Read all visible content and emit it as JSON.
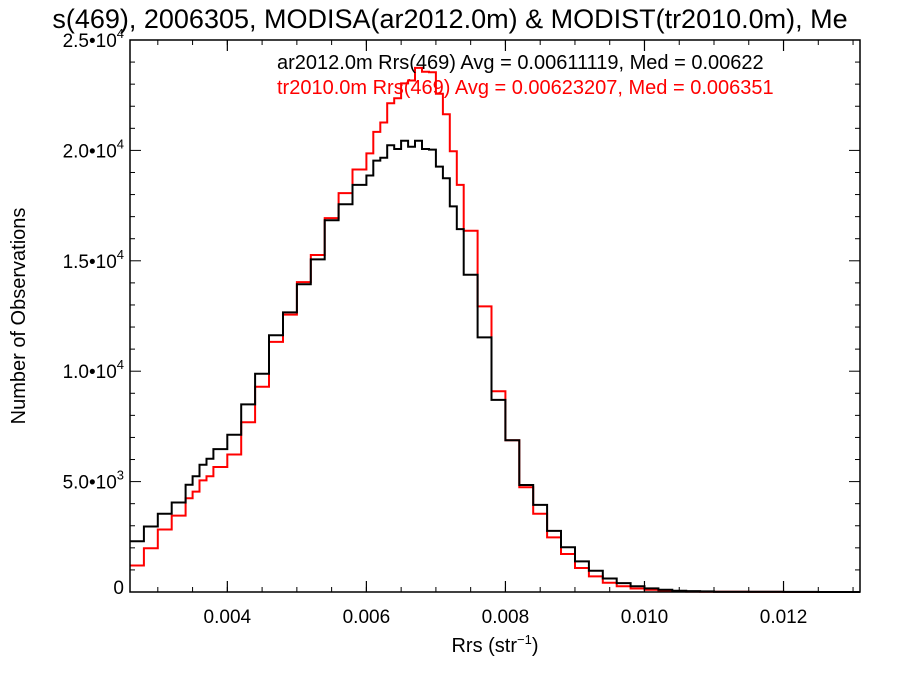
{
  "chart_data": {
    "type": "line",
    "title": "s(469), 2006305, MODISA(ar2012.0m) & MODIST(tr2010.0m), Me",
    "xlabel": "Rrs (str",
    "xlabel_sup": "−1",
    "xlabel_close": ")",
    "ylabel": "Number of Observations",
    "xlim": [
      0.0026,
      0.0131
    ],
    "ylim": [
      0,
      25000
    ],
    "x_ticks": [
      {
        "value": 0.004,
        "label": "0.004"
      },
      {
        "value": 0.006,
        "label": "0.006"
      },
      {
        "value": 0.008,
        "label": "0.008"
      },
      {
        "value": 0.01,
        "label": "0.010"
      },
      {
        "value": 0.012,
        "label": "0.012"
      }
    ],
    "y_ticks": [
      {
        "value": 0,
        "mant": "0",
        "exp": ""
      },
      {
        "value": 5000,
        "mant": "5.0•10",
        "exp": "3"
      },
      {
        "value": 10000,
        "mant": "1.0•10",
        "exp": "4"
      },
      {
        "value": 15000,
        "mant": "1.5•10",
        "exp": "4"
      },
      {
        "value": 20000,
        "mant": "2.0•10",
        "exp": "4"
      },
      {
        "value": 25000,
        "mant": "2.5•10",
        "exp": "4"
      }
    ],
    "grid": false,
    "legend_position": "top-right",
    "series": [
      {
        "name": "ar2012.0m Rrs(469) Avg = 0.00611119, Med = 0.00622",
        "color": "#000000",
        "step": true,
        "x": [
          0.0026,
          0.0028,
          0.003,
          0.0032,
          0.0034,
          0.0035,
          0.0036,
          0.0037,
          0.0038,
          0.004,
          0.0042,
          0.0044,
          0.0046,
          0.0048,
          0.005,
          0.0052,
          0.0054,
          0.0056,
          0.0058,
          0.006,
          0.0061,
          0.0062,
          0.0063,
          0.0064,
          0.0065,
          0.0066,
          0.0067,
          0.0068,
          0.0069,
          0.007,
          0.0071,
          0.0072,
          0.0073,
          0.0074,
          0.0076,
          0.0078,
          0.008,
          0.0082,
          0.0084,
          0.0086,
          0.0088,
          0.009,
          0.0092,
          0.0094,
          0.0096,
          0.0098,
          0.01,
          0.0102,
          0.0104,
          0.0106,
          0.0108,
          0.011,
          0.0115,
          0.012,
          0.0125,
          0.0131
        ],
        "y": [
          2300,
          3000,
          3500,
          4100,
          4800,
          5300,
          5700,
          6100,
          6400,
          7200,
          8400,
          10000,
          11500,
          12800,
          13800,
          15200,
          16700,
          17700,
          18300,
          19000,
          19400,
          19800,
          20100,
          20200,
          20300,
          20300,
          20300,
          20200,
          19900,
          19400,
          18600,
          17600,
          16300,
          14500,
          11400,
          8800,
          6800,
          4900,
          3900,
          2800,
          2000,
          1400,
          950,
          620,
          400,
          260,
          160,
          100,
          60,
          40,
          25,
          15,
          8,
          4,
          2,
          1
        ]
      },
      {
        "name": "tr2010.0m Rrs(469) Avg = 0.00623207, Med = 0.006351",
        "color": "#ff0000",
        "step": true,
        "x": [
          0.0026,
          0.0028,
          0.003,
          0.0032,
          0.0034,
          0.0035,
          0.0036,
          0.0037,
          0.0038,
          0.004,
          0.0042,
          0.0044,
          0.0046,
          0.0048,
          0.005,
          0.0052,
          0.0054,
          0.0056,
          0.0058,
          0.006,
          0.0061,
          0.0062,
          0.0063,
          0.0064,
          0.0065,
          0.0066,
          0.0067,
          0.0068,
          0.0069,
          0.007,
          0.0071,
          0.0072,
          0.0073,
          0.0074,
          0.0076,
          0.0078,
          0.008,
          0.0082,
          0.0084,
          0.0086,
          0.0088,
          0.009,
          0.0092,
          0.0094,
          0.0096,
          0.0098,
          0.01,
          0.0102,
          0.0104,
          0.0106,
          0.0108,
          0.011,
          0.0115,
          0.012,
          0.0125,
          0.0131
        ],
        "y": [
          1200,
          2000,
          2800,
          3500,
          4200,
          4600,
          5000,
          5300,
          5600,
          6300,
          7600,
          9400,
          11200,
          12700,
          13900,
          15400,
          16800,
          18200,
          19000,
          20000,
          20700,
          21400,
          22000,
          22500,
          22900,
          23300,
          23600,
          23700,
          23400,
          22700,
          21500,
          20100,
          18300,
          16500,
          12800,
          9200,
          6800,
          4800,
          3500,
          2500,
          1700,
          1100,
          700,
          420,
          260,
          160,
          100,
          60,
          35,
          20,
          12,
          8,
          4,
          2,
          1,
          0
        ]
      }
    ]
  }
}
